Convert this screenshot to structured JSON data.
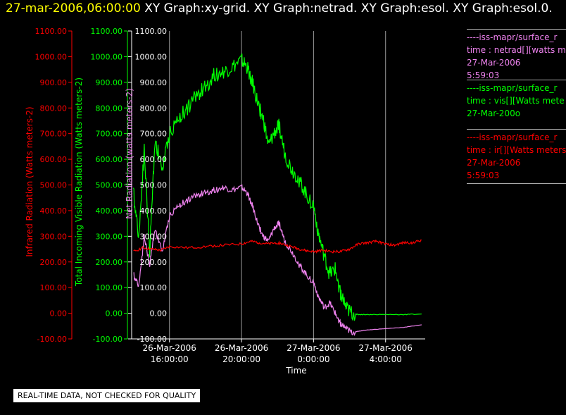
{
  "title": {
    "date": "27-mar-2006,06:00:00",
    "graphs": "XY Graph:xy-grid.  XY Graph:netrad.  XY Graph:esol.  XY Graph:esol.0."
  },
  "notice": "REAL-TIME DATA, NOT CHECKED FOR QUALITY",
  "colors": {
    "ir": "#ff0000",
    "vis": "#00ff00",
    "net": "#ee82ee",
    "axis": "#ffffff",
    "grid": "#9a9a9a"
  },
  "legend": [
    {
      "source": "----iss-mapr/surface_r",
      "var": "time : netrad[][watts m",
      "date": "27-Mar-2006",
      "time": "5:59:03",
      "color": "#ee82ee"
    },
    {
      "source": "----iss-mapr/surface_r",
      "var": "time : vis[][Watts mete",
      "date": "27-Mar-200o",
      "time": "",
      "color": "#00ff00"
    },
    {
      "source": "----iss-mapr/surface_r",
      "var": "time : ir[][Watts meters",
      "date": "27-Mar-2006",
      "time": "5:59:03",
      "color": "#ff0000"
    }
  ],
  "chart_data": {
    "type": "line",
    "xlabel": "Time",
    "x_ticks": [
      {
        "line1": "26-Mar-2006",
        "line2": "16:00:00",
        "hour": 16
      },
      {
        "line1": "26-Mar-2006",
        "line2": "20:00:00",
        "hour": 20
      },
      {
        "line1": "27-Mar-2006",
        "line2": "0:00:00",
        "hour": 24
      },
      {
        "line1": "27-Mar-2006",
        "line2": "4:00:00",
        "hour": 28
      }
    ],
    "xlim_hours": [
      13.9,
      30.2
    ],
    "ylim": [
      -100,
      1100
    ],
    "y_ticks": [
      "1100.00",
      "1000.00",
      "900.00",
      "800.00",
      "700.00",
      "600.00",
      "500.00",
      "400.00",
      "300.00",
      "200.00",
      "100.00",
      "0.00",
      "-100.00"
    ],
    "grid": true,
    "axes": [
      {
        "label": "Infrared Radiation (Watts meters-2)",
        "color": "#ff0000"
      },
      {
        "label": "Total Incoming Visible Radiation (Watts meters-2)",
        "color": "#00ff00"
      },
      {
        "label": "Net Radiation (watts meters-2)",
        "color": "#ee82ee"
      }
    ],
    "series": [
      {
        "key": "vis",
        "x": [
          14.0,
          14.3,
          14.6,
          14.9,
          15.2,
          15.6,
          16.0,
          16.5,
          17.0,
          17.5,
          18.0,
          18.5,
          19.0,
          19.5,
          20.0,
          20.3,
          20.6,
          20.9,
          21.2,
          21.5,
          21.8,
          22.1,
          22.4,
          22.8,
          23.2,
          23.6,
          24.0,
          24.3,
          24.6,
          24.9,
          25.2,
          25.5,
          25.8,
          26.1,
          26.5,
          27.0,
          28.0,
          29.0,
          30.0
        ],
        "y": [
          470,
          300,
          640,
          240,
          680,
          560,
          700,
          760,
          800,
          850,
          880,
          930,
          940,
          960,
          985,
          960,
          900,
          820,
          760,
          650,
          700,
          730,
          620,
          560,
          520,
          460,
          420,
          300,
          220,
          150,
          170,
          80,
          20,
          0,
          -5,
          -5,
          -5,
          -5,
          -3
        ]
      },
      {
        "key": "net",
        "x": [
          14.0,
          14.3,
          14.6,
          14.9,
          15.2,
          15.6,
          16.0,
          16.5,
          17.0,
          17.5,
          18.0,
          18.5,
          19.0,
          19.5,
          20.0,
          20.3,
          20.6,
          20.9,
          21.2,
          21.5,
          21.8,
          22.1,
          22.4,
          22.8,
          23.2,
          23.6,
          24.0,
          24.3,
          24.6,
          24.9,
          25.2,
          25.5,
          25.8,
          26.1,
          26.5,
          27.0,
          28.0,
          29.0,
          30.0
        ],
        "y": [
          150,
          110,
          300,
          190,
          330,
          240,
          380,
          420,
          440,
          460,
          470,
          480,
          490,
          480,
          490,
          470,
          420,
          350,
          300,
          280,
          330,
          350,
          280,
          240,
          190,
          150,
          120,
          60,
          20,
          40,
          0,
          -40,
          -60,
          -75,
          -70,
          -65,
          -60,
          -55,
          -45
        ]
      },
      {
        "key": "ir",
        "x": [
          14.0,
          14.5,
          15.0,
          15.5,
          16.0,
          17.0,
          18.0,
          19.0,
          20.0,
          20.5,
          21.0,
          21.5,
          22.0,
          22.5,
          23.0,
          23.5,
          24.0,
          24.5,
          25.0,
          25.5,
          26.0,
          26.5,
          27.0,
          27.5,
          28.0,
          28.5,
          29.0,
          29.5,
          30.0
        ],
        "y": [
          240,
          255,
          250,
          245,
          260,
          255,
          260,
          265,
          270,
          280,
          275,
          270,
          275,
          265,
          255,
          245,
          240,
          245,
          240,
          240,
          250,
          270,
          275,
          280,
          270,
          265,
          275,
          275,
          285
        ]
      }
    ]
  }
}
